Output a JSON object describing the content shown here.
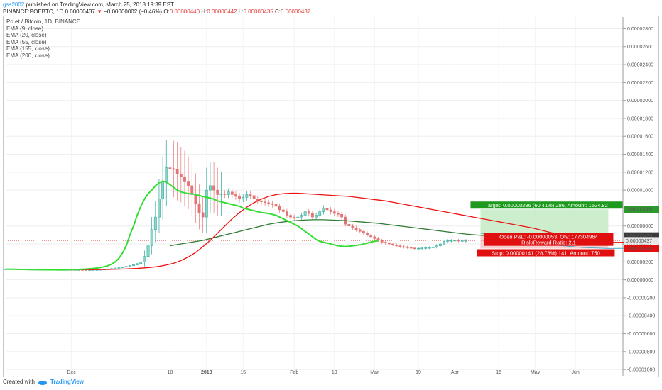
{
  "header": {
    "username": "gss2002",
    "published": "published on TradingView.com, March 25, 2018 19:39 EST",
    "symbol_line_prefix": "BINANCE:POEBTC, 1D",
    "last_price": "0.00000437",
    "change_arrow": "▼",
    "change": "−0.00000002 (−0.46%)",
    "o_label": "O:",
    "o_value": "0.00000440",
    "h_label": "H:",
    "h_value": "0.00000442",
    "l_label": "L:",
    "l_value": "0.00000435",
    "c_label": "C:",
    "c_value": "0.00000437"
  },
  "legend": {
    "title": "Po.et / Bitcoin, 1D, BINANCE",
    "items": [
      "EMA (9, close)",
      "EMA (20, close)",
      "EMA (55, close)",
      "EMA (155, close)",
      "EMA (200, close)"
    ]
  },
  "footer": {
    "created_with": "Created with",
    "brand": "TradingView"
  },
  "colors": {
    "up": "#26a69a",
    "up_fill": "#8fd3c6",
    "down": "#e57373",
    "ema9": "#33dd33",
    "ema20": "#ee1111",
    "ema55": "#2e7d32",
    "target_zone": "#c8ecc8",
    "stop_zone": "#f7c9c9",
    "target_label": "#1e9a1e",
    "stop_label": "#e01010"
  },
  "chart_data": {
    "type": "line",
    "x_ticks": [
      "Dec",
      "18",
      "2018",
      "15",
      "Feb",
      "13",
      "Mar",
      "19",
      "Apr",
      "16",
      "May",
      "Jun"
    ],
    "y_ticks": [
      "0.00002800",
      "0.00002600",
      "0.00002400",
      "0.00002200",
      "0.00002000",
      "0.00001800",
      "0.00001600",
      "0.00001400",
      "0.00001200",
      "0.00001000",
      "0.00000800",
      "0.00000600",
      "0.00000400",
      "0.00000200",
      "0.00000000",
      "-0.00000200",
      "-0.00000400",
      "-0.00000600",
      "-0.00000800",
      "-0.00001000"
    ],
    "ylim": [
      -1.07e-05,
      2.93e-05
    ],
    "y_unit": 1e-08,
    "x_first_day": 35,
    "x_last_day": 204,
    "candle_days": [
      35,
      125
    ],
    "candles_close": [
      120,
      121,
      120,
      119,
      118,
      117,
      117,
      116,
      116,
      115,
      116,
      115,
      114,
      114,
      113,
      113,
      112,
      113,
      112,
      111,
      112,
      111,
      110,
      111,
      112,
      113,
      115,
      117,
      120,
      125,
      130,
      136,
      142,
      150,
      158,
      168,
      180,
      200,
      260,
      380,
      560,
      700,
      900,
      1100,
      1250,
      1240,
      1230,
      1180,
      1150,
      1100,
      1050,
      950,
      850,
      750,
      700,
      1000,
      1050,
      1000,
      950,
      960,
      950,
      980,
      950,
      930,
      900,
      920,
      950,
      940,
      900,
      880,
      870,
      860,
      850,
      840,
      820,
      780,
      760,
      720,
      700,
      690,
      700,
      720,
      760,
      740,
      700,
      720,
      760,
      800,
      780,
      760,
      740,
      730,
      700,
      620,
      600,
      580,
      560,
      540,
      520,
      500,
      480,
      460,
      440,
      420,
      410,
      400,
      390,
      380,
      370,
      365,
      360,
      355,
      350,
      352,
      355,
      358,
      360,
      365,
      380,
      400,
      430,
      437,
      437,
      440,
      437,
      437,
      437
    ],
    "ema9": [
      120,
      119,
      118,
      117,
      116,
      116,
      115,
      114,
      114,
      113,
      113,
      112,
      112,
      112,
      111,
      111,
      111,
      112,
      113,
      114,
      116,
      118,
      120,
      123,
      127,
      132,
      138,
      146,
      158,
      175,
      200,
      240,
      300,
      380,
      500,
      600,
      720,
      820,
      900,
      960,
      1000,
      1050,
      1080,
      1100,
      1090,
      1060,
      1030,
      1000,
      980,
      970,
      960,
      960,
      950,
      940,
      930,
      920,
      910,
      900,
      880,
      870,
      860,
      850,
      840,
      830,
      820,
      800,
      790,
      780,
      770,
      760,
      750,
      745,
      740,
      730,
      720,
      700,
      680,
      660,
      640,
      620,
      600,
      570,
      540,
      510,
      480,
      450,
      430,
      420,
      410,
      400,
      390,
      380,
      375,
      372,
      375,
      380,
      385,
      390,
      400,
      410,
      420,
      430,
      435
    ],
    "ema9_days": [
      35,
      36,
      37,
      38,
      39,
      40,
      41,
      42,
      43,
      44,
      45,
      46,
      47,
      48,
      49,
      50,
      51,
      52,
      53,
      54,
      55,
      56,
      57,
      58,
      59,
      60,
      61,
      62,
      63,
      64,
      65,
      66,
      67,
      68,
      69,
      70,
      71,
      72,
      73,
      74,
      75,
      76,
      77,
      78,
      79,
      80,
      81,
      82,
      83,
      84,
      85,
      86,
      87,
      88,
      89,
      90,
      91,
      92,
      93,
      94,
      95,
      96,
      97,
      98,
      99,
      100,
      101,
      102,
      103,
      104,
      105,
      106,
      107,
      108,
      109,
      110,
      111,
      112,
      113,
      114,
      115,
      116,
      117,
      118,
      119,
      120,
      121,
      122,
      123,
      124,
      125,
      126,
      127,
      128,
      129,
      130,
      131,
      132,
      133,
      134,
      135,
      136,
      137
    ],
    "ema20": [
      118,
      117,
      117,
      116,
      115,
      115,
      114,
      114,
      113,
      113,
      113,
      113,
      114,
      115,
      116,
      118,
      120,
      123,
      127,
      133,
      140,
      150,
      165,
      185,
      215,
      255,
      305,
      370,
      440,
      520,
      600,
      680,
      750,
      810,
      860,
      900,
      930,
      950,
      960,
      965,
      965,
      960,
      955,
      950,
      945,
      940,
      935,
      930,
      920,
      910,
      900,
      890,
      880,
      865,
      850,
      835,
      820,
      805,
      790,
      775,
      760,
      745,
      730,
      715,
      700,
      685,
      670,
      655,
      640,
      625,
      610,
      595,
      580,
      560,
      540,
      520,
      500,
      480,
      460,
      445,
      432,
      425,
      420,
      418,
      418,
      420,
      425,
      430
    ],
    "ema20_days": [
      35,
      37,
      39,
      41,
      43,
      45,
      47,
      49,
      51,
      53,
      55,
      57,
      59,
      61,
      63,
      65,
      67,
      69,
      71,
      73,
      75,
      77,
      79,
      81,
      83,
      85,
      87,
      89,
      91,
      93,
      95,
      97,
      99,
      101,
      103,
      105,
      107,
      109,
      111,
      113,
      115,
      117,
      119,
      121,
      123,
      125,
      127,
      129,
      131,
      133,
      135,
      137,
      139,
      141,
      143,
      145,
      147,
      149,
      151,
      153,
      155,
      157,
      159,
      161,
      163,
      165,
      167,
      169,
      171,
      173,
      175,
      177,
      179,
      181,
      183,
      185,
      187,
      189,
      191,
      193,
      195,
      197,
      199,
      201,
      203,
      205,
      207,
      209
    ],
    "ema55": [
      380,
      400,
      420,
      440,
      470,
      500,
      530,
      560,
      590,
      620,
      640,
      655,
      665,
      670,
      670,
      665,
      660,
      650,
      640,
      630,
      615,
      600,
      585,
      570,
      555,
      540,
      525,
      510,
      500,
      490,
      482,
      476,
      470
    ],
    "ema55_days": [
      80,
      83,
      86,
      89,
      92,
      95,
      98,
      101,
      104,
      107,
      110,
      113,
      116,
      119,
      122,
      125,
      128,
      131,
      134,
      137,
      140,
      143,
      146,
      149,
      152,
      155,
      158,
      161,
      164,
      167,
      170,
      173,
      176
    ],
    "projection_curve": [
      [
        165,
        520
      ],
      [
        172,
        470
      ],
      [
        179,
        420
      ],
      [
        186,
        385
      ],
      [
        193,
        360
      ],
      [
        200,
        350
      ],
      [
        207,
        352
      ],
      [
        214,
        365
      ],
      [
        221,
        390
      ],
      [
        228,
        430
      ],
      [
        235,
        490
      ],
      [
        242,
        570
      ],
      [
        249,
        670
      ],
      [
        256,
        785
      ]
    ],
    "position": {
      "target": "Target: 0.00000296 (60.41%) 296, Amount: 1524.82",
      "pnl": "Open P&L: -0.00000053, Qty: 177304964",
      "ratio": "Risk/Reward Ratio: 2.1",
      "stop": "Stop: 0.00000141 (28.78%) 141, Amount: 750",
      "entry_price": "0.00000490",
      "target_price": "0.00000786",
      "stop_price": "0.00000349",
      "current_price": "0.00000437",
      "entry": 490,
      "target_level": 786,
      "stop_level": 349,
      "current": 437
    }
  }
}
